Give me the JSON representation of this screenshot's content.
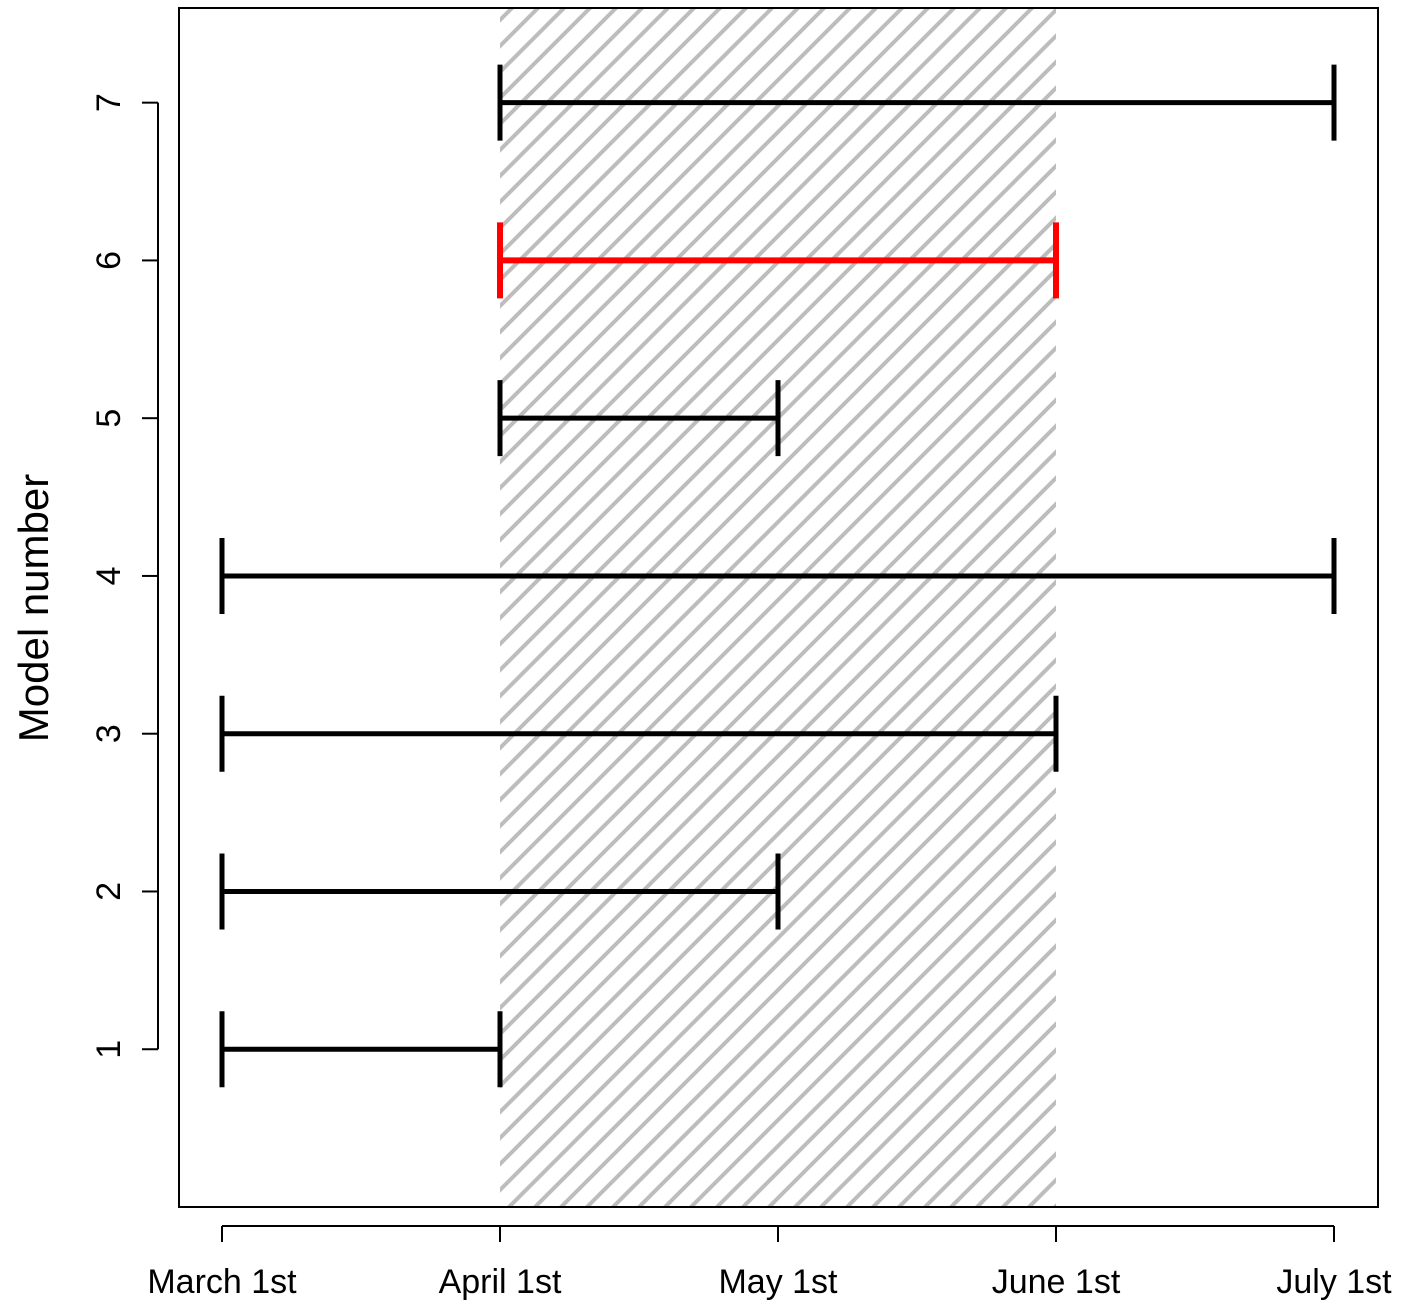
{
  "chart_data": {
    "type": "interval",
    "xlabel": "",
    "ylabel": "Model number",
    "x_ticks": [
      "March 1st",
      "April 1st",
      "May 1st",
      "June 1st",
      "July 1st"
    ],
    "y_ticks": [
      "1",
      "2",
      "3",
      "4",
      "5",
      "6",
      "7"
    ],
    "ylim": [
      0,
      7.6
    ],
    "shaded_region": {
      "from": "April 1st",
      "to": "June 1st",
      "pattern": "diagonal-hatch",
      "color": "#bdbdbd"
    },
    "intervals": [
      {
        "model": "1",
        "start": "March 1st",
        "end": "April 1st",
        "color": "#000000"
      },
      {
        "model": "2",
        "start": "March 1st",
        "end": "May 1st",
        "color": "#000000"
      },
      {
        "model": "3",
        "start": "March 1st",
        "end": "June 1st",
        "color": "#000000"
      },
      {
        "model": "4",
        "start": "March 1st",
        "end": "July 1st",
        "color": "#000000"
      },
      {
        "model": "5",
        "start": "April 1st",
        "end": "May 1st",
        "color": "#000000"
      },
      {
        "model": "6",
        "start": "April 1st",
        "end": "June 1st",
        "color": "#ff0000"
      },
      {
        "model": "7",
        "start": "April 1st",
        "end": "July 1st",
        "color": "#000000"
      }
    ]
  }
}
